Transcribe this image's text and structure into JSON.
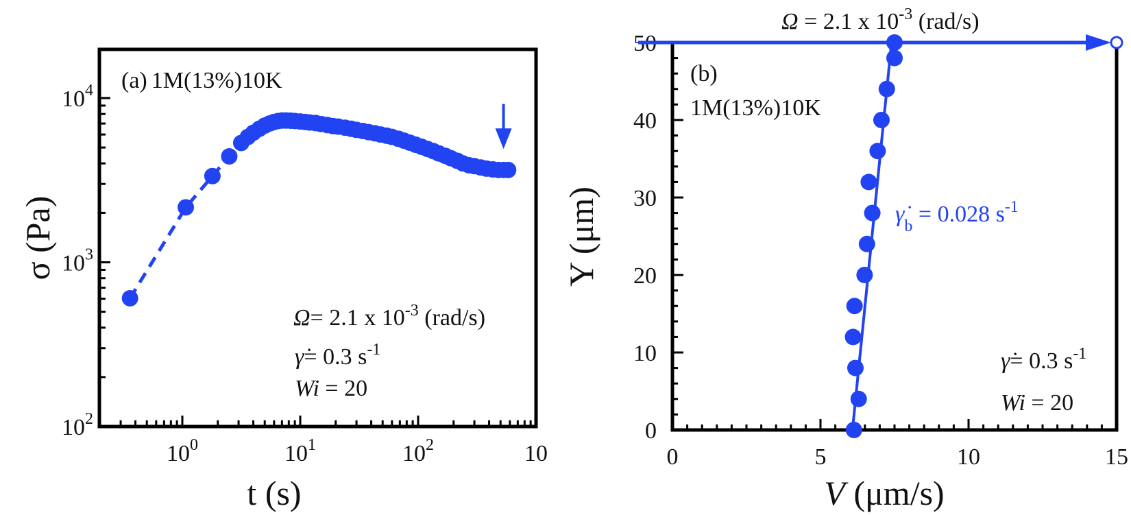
{
  "chart_data": [
    {
      "type": "scatter",
      "panel_label": "(a)",
      "sample_label": "1M(13%)10K",
      "xlabel": "t (s)",
      "ylabel": "σ (Pa)",
      "xscale": "log",
      "yscale": "log",
      "xlim": [
        0.17,
        1000
      ],
      "ylim": [
        100,
        20000
      ],
      "x_ticks": [
        {
          "base": "10",
          "exp": "0"
        },
        {
          "base": "10",
          "exp": "1"
        },
        {
          "base": "10",
          "exp": "2"
        },
        {
          "base": "10",
          "exp": ""
        }
      ],
      "y_ticks": [
        {
          "base": "10",
          "exp": "2"
        },
        {
          "base": "10",
          "exp": "3"
        },
        {
          "base": "10",
          "exp": "4"
        }
      ],
      "series_color": "#2143f2",
      "points": [
        [
          0.36,
          604
        ],
        [
          1.07,
          2160
        ],
        [
          1.8,
          3350
        ],
        [
          2.5,
          4415
        ],
        [
          3.16,
          5330
        ],
        [
          3.6,
          5800
        ],
        [
          4.0,
          6150
        ],
        [
          4.5,
          6500
        ],
        [
          5,
          6800
        ],
        [
          5.5,
          7000
        ],
        [
          6,
          7150
        ],
        [
          6.5,
          7250
        ],
        [
          7,
          7300
        ],
        [
          7.6,
          7300
        ],
        [
          8.3,
          7280
        ],
        [
          9,
          7250
        ],
        [
          10,
          7200
        ],
        [
          11,
          7150
        ],
        [
          12,
          7100
        ],
        [
          13.5,
          7050
        ],
        [
          15,
          6950
        ],
        [
          17,
          6850
        ],
        [
          19,
          6750
        ],
        [
          21,
          6700
        ],
        [
          24,
          6600
        ],
        [
          27,
          6500
        ],
        [
          30,
          6400
        ],
        [
          34,
          6300
        ],
        [
          38,
          6200
        ],
        [
          43,
          6100
        ],
        [
          48,
          6000
        ],
        [
          54,
          5900
        ],
        [
          60,
          5800
        ],
        [
          68,
          5650
        ],
        [
          76,
          5500
        ],
        [
          85,
          5350
        ],
        [
          95,
          5200
        ],
        [
          107,
          5050
        ],
        [
          120,
          4900
        ],
        [
          135,
          4750
        ],
        [
          150,
          4600
        ],
        [
          170,
          4450
        ],
        [
          190,
          4300
        ],
        [
          215,
          4150
        ],
        [
          240,
          4000
        ],
        [
          270,
          3900
        ],
        [
          300,
          3850
        ],
        [
          340,
          3780
        ],
        [
          380,
          3720
        ],
        [
          430,
          3680
        ],
        [
          480,
          3650
        ],
        [
          530,
          3650
        ],
        [
          580,
          3650
        ]
      ],
      "dashed_line": [
        [
          0.36,
          604
        ],
        [
          1.07,
          2160
        ],
        [
          1.8,
          3350
        ],
        [
          2.5,
          4415
        ]
      ],
      "arrow": {
        "t": 530,
        "sigma_from": 9200,
        "sigma_to": 4900
      },
      "annotations": {
        "omega_symbol": "Ω",
        "omega_text": "= 2.1 x 10",
        "omega_exp": "-3",
        "omega_unit": " (rad/s)",
        "gamma_symbol": "γ̇",
        "gamma_text": "= 0.3 s",
        "gamma_exp": "-1",
        "wi_symbol": "Wi",
        "wi_text": " = 20"
      }
    },
    {
      "type": "scatter",
      "panel_label": "(b)",
      "sample_label": "1M(13%)10K",
      "xlabel_symbol": "V",
      "xlabel": " (μm/s)",
      "ylabel": "Y (μm)",
      "xlim": [
        0,
        15
      ],
      "ylim": [
        0,
        50
      ],
      "x_ticks": [
        "0",
        "5",
        "10",
        "15"
      ],
      "y_ticks": [
        "0",
        "10",
        "20",
        "30",
        "40",
        "50"
      ],
      "series_color": "#2143f2",
      "points": [
        [
          6.13,
          0
        ],
        [
          6.29,
          4
        ],
        [
          6.18,
          8
        ],
        [
          6.1,
          12
        ],
        [
          6.15,
          16
        ],
        [
          6.49,
          20
        ],
        [
          6.57,
          24
        ],
        [
          6.75,
          28
        ],
        [
          6.63,
          32
        ],
        [
          6.93,
          36
        ],
        [
          7.06,
          40
        ],
        [
          7.24,
          44
        ],
        [
          7.5,
          48
        ],
        [
          7.5,
          50
        ]
      ],
      "fit_line": [
        [
          6.08,
          0
        ],
        [
          7.4,
          50
        ]
      ],
      "wall_velocity_arrow": {
        "y": 50,
        "v_from": 0,
        "v_to": 15
      },
      "fit_label": {
        "symbol": "γ̇",
        "sub": "b",
        "text": " = 0.028 s",
        "exp": "-1"
      },
      "annotations": {
        "omega_symbol": "Ω",
        "omega_text": " = 2.1 x 10",
        "omega_exp": "-3",
        "omega_unit": " (rad/s)",
        "gamma_symbol": "γ̇",
        "gamma_text": "= 0.3 s",
        "gamma_exp": "-1",
        "wi_symbol": "Wi",
        "wi_text": " = 20"
      }
    }
  ]
}
